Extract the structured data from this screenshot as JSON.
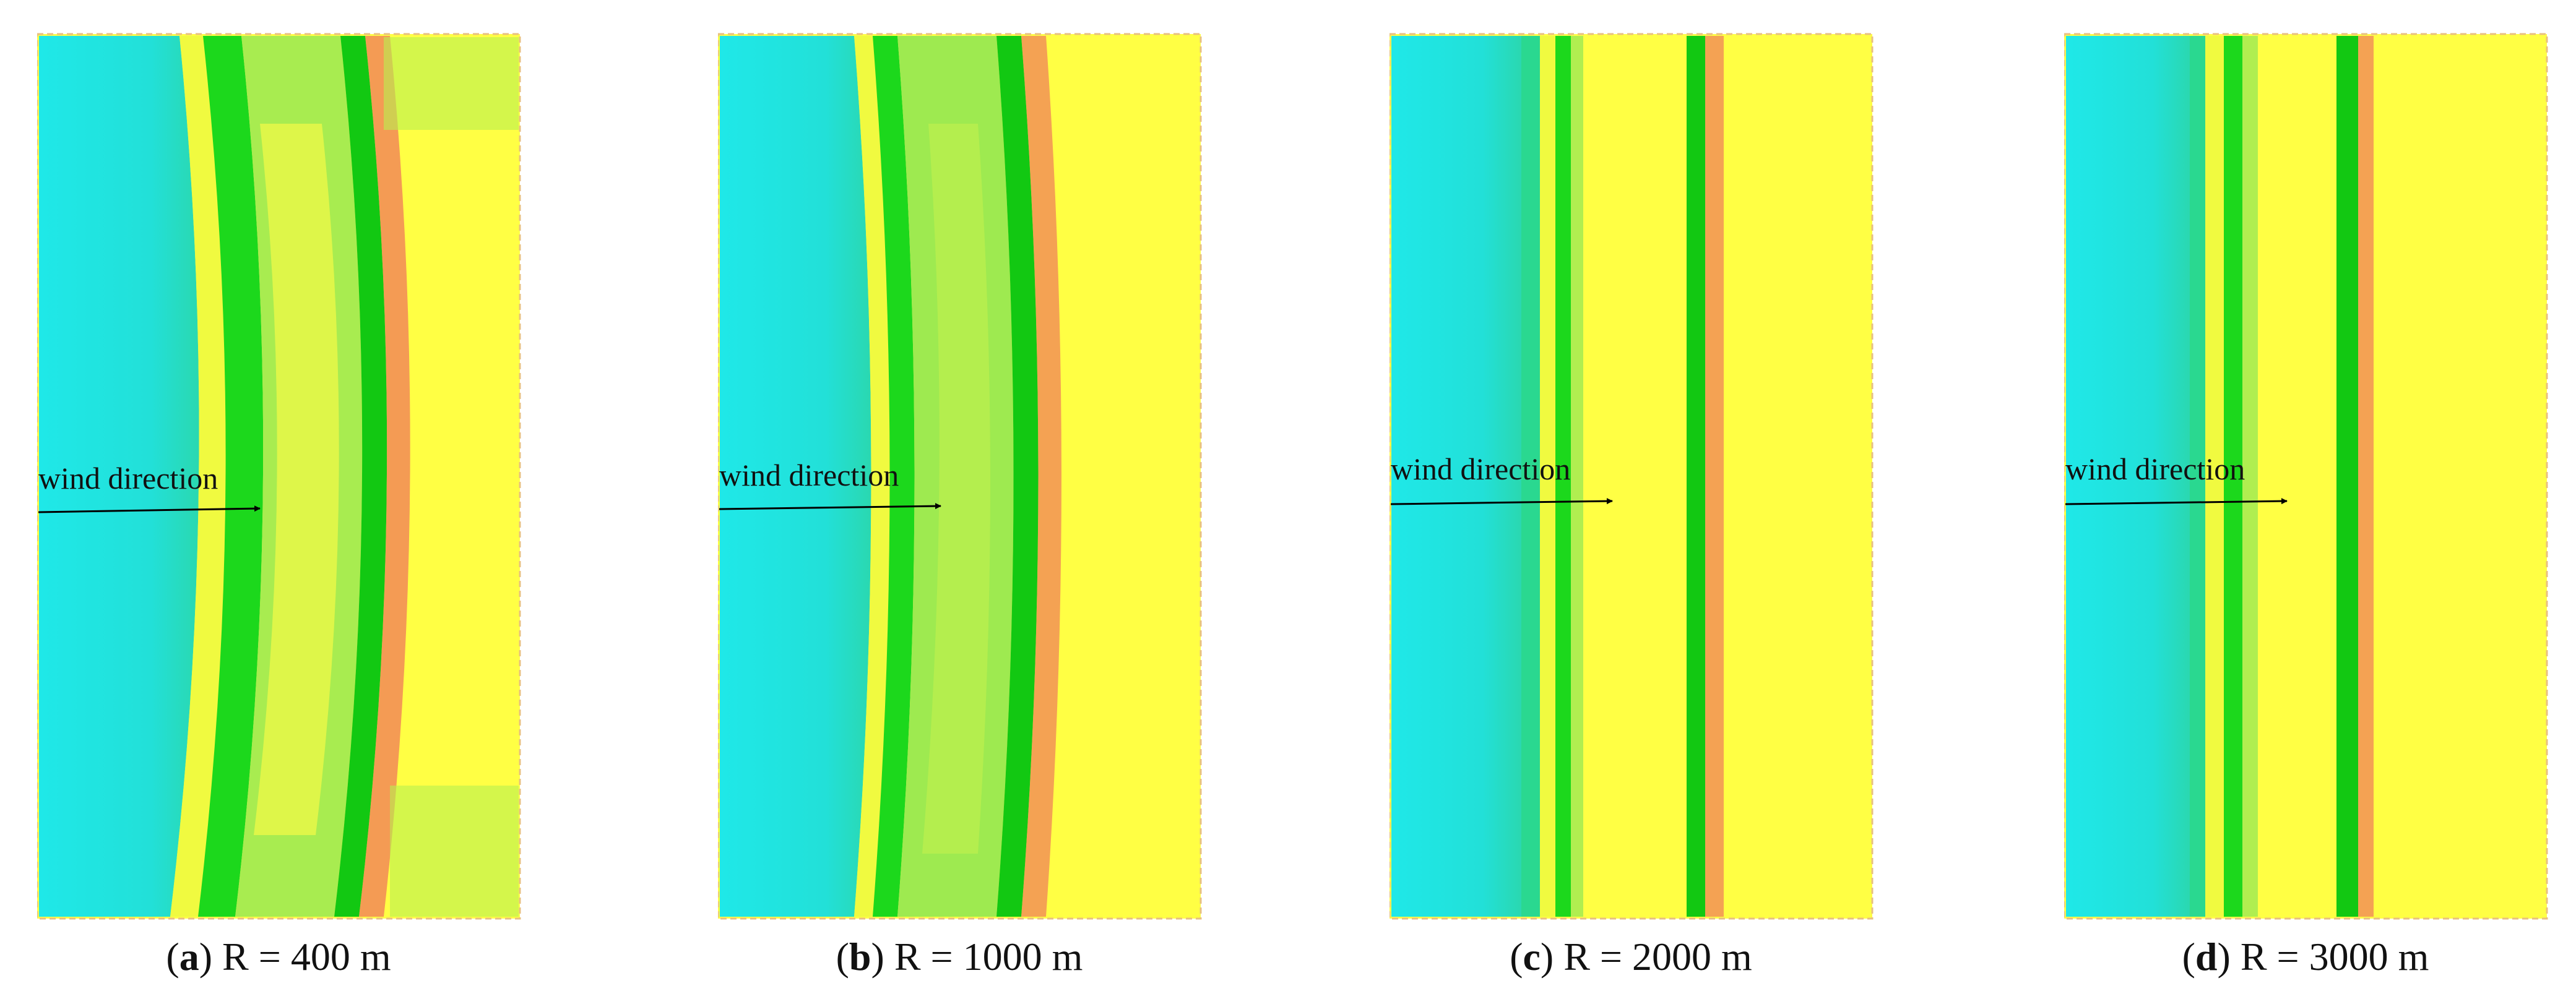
{
  "wind_label": "wind direction",
  "colors": {
    "cyan": "#22E6E6",
    "green": "#1AD81A",
    "light_green": "#9BEA50",
    "yellow": "#FFFF44",
    "red": "#E8665A",
    "border": "#E8C080"
  },
  "panels": [
    {
      "letter": "a",
      "caption_rest": " R = 400 m"
    },
    {
      "letter": "b",
      "caption_rest": " R = 1000 m"
    },
    {
      "letter": "c",
      "caption_rest": " R = 2000 m"
    },
    {
      "letter": "d",
      "caption_rest": " R = 3000 m"
    }
  ]
}
